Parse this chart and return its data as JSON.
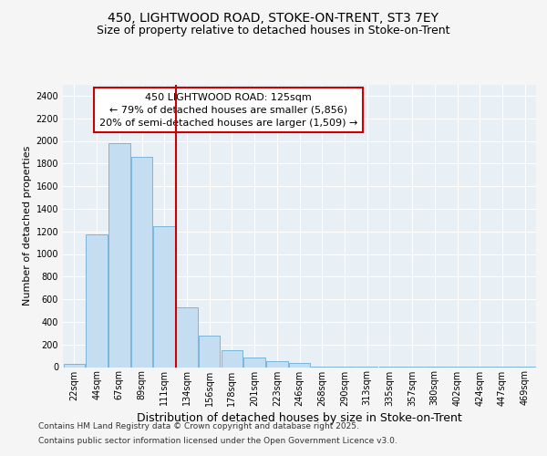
{
  "title1": "450, LIGHTWOOD ROAD, STOKE-ON-TRENT, ST3 7EY",
  "title2": "Size of property relative to detached houses in Stoke-on-Trent",
  "xlabel": "Distribution of detached houses by size in Stoke-on-Trent",
  "ylabel": "Number of detached properties",
  "categories": [
    "22sqm",
    "44sqm",
    "67sqm",
    "89sqm",
    "111sqm",
    "134sqm",
    "156sqm",
    "178sqm",
    "201sqm",
    "223sqm",
    "246sqm",
    "268sqm",
    "290sqm",
    "313sqm",
    "335sqm",
    "357sqm",
    "380sqm",
    "402sqm",
    "424sqm",
    "447sqm",
    "469sqm"
  ],
  "values": [
    30,
    1170,
    1980,
    1860,
    1250,
    525,
    275,
    150,
    85,
    50,
    35,
    8,
    5,
    5,
    3,
    3,
    3,
    3,
    3,
    3,
    3
  ],
  "bar_color": "#c5ddf0",
  "bar_edge_color": "#6baed6",
  "vline_pos": 5,
  "vline_color": "#cc0000",
  "annotation_text": "450 LIGHTWOOD ROAD: 125sqm\n← 79% of detached houses are smaller (5,856)\n20% of semi-detached houses are larger (1,509) →",
  "annotation_box_color": "#ffffff",
  "annotation_box_edge": "#cc0000",
  "ylim": [
    0,
    2500
  ],
  "yticks": [
    0,
    200,
    400,
    600,
    800,
    1000,
    1200,
    1400,
    1600,
    1800,
    2000,
    2200,
    2400
  ],
  "bg_color": "#dde8f0",
  "plot_bg_color": "#e8eff5",
  "grid_color": "#ffffff",
  "fig_bg_color": "#f5f5f5",
  "footer1": "Contains HM Land Registry data © Crown copyright and database right 2025.",
  "footer2": "Contains public sector information licensed under the Open Government Licence v3.0.",
  "title1_fontsize": 10,
  "title2_fontsize": 9,
  "ylabel_fontsize": 8,
  "xlabel_fontsize": 9,
  "tick_fontsize": 7,
  "footer_fontsize": 6.5,
  "annot_fontsize": 8
}
